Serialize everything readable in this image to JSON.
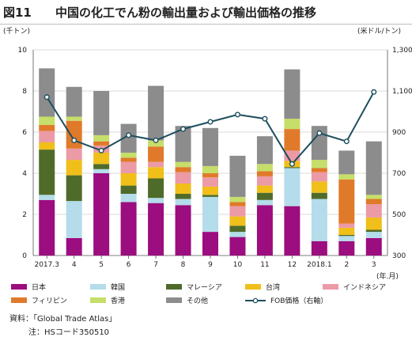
{
  "header": {
    "fig_num": "図11",
    "title": "中国の化工でん粉の輸出量および輸出価格の推移"
  },
  "units": {
    "left": "(千トン)",
    "right": "(米ドル/トン)",
    "x": "(年.月)"
  },
  "notes": {
    "source": "資料：「Global Trade Atlas」",
    "note": "注：HSコード350510"
  },
  "chart_data": {
    "type": "bar",
    "stacked": true,
    "categories": [
      "2017.3",
      "4",
      "5",
      "6",
      "7",
      "8",
      "9",
      "10",
      "11",
      "12",
      "2018.1",
      "2",
      "3"
    ],
    "ylim": [
      0,
      10
    ],
    "yticks": [
      0,
      2,
      4,
      6,
      8,
      10
    ],
    "y2lim": [
      300,
      1300
    ],
    "y2ticks": [
      "300",
      "500",
      "700",
      "900",
      "1,100",
      "1,300"
    ],
    "grid": true,
    "legend_position": "bottom",
    "series": [
      {
        "name": "日本",
        "color": "#9c0d7f",
        "values": [
          2.7,
          0.85,
          4.0,
          2.6,
          2.55,
          2.45,
          1.15,
          0.9,
          2.45,
          2.4,
          0.7,
          0.7,
          0.85
        ]
      },
      {
        "name": "韓国",
        "color": "#b4dcea",
        "values": [
          0.25,
          1.8,
          0.2,
          0.4,
          0.25,
          0.3,
          1.7,
          0.25,
          0.25,
          1.85,
          2.05,
          0.25,
          0.3
        ]
      },
      {
        "name": "マレーシア",
        "color": "#4f6b2a",
        "values": [
          2.2,
          1.25,
          0.25,
          0.4,
          0.95,
          0.25,
          0.1,
          0.3,
          0.35,
          0.05,
          0.3,
          0.05,
          0.1
        ]
      },
      {
        "name": "台湾",
        "color": "#f0bf1a",
        "values": [
          0.35,
          0.75,
          0.55,
          0.6,
          0.55,
          0.5,
          0.4,
          0.45,
          0.35,
          0.3,
          0.55,
          0.35,
          0.6
        ]
      },
      {
        "name": "インドネシア",
        "color": "#ec9aa6",
        "values": [
          0.55,
          0.55,
          0.35,
          0.55,
          0.25,
          0.55,
          0.45,
          0.5,
          0.45,
          0.5,
          0.45,
          0.2,
          0.65
        ]
      },
      {
        "name": "フィリピン",
        "color": "#e07a2a",
        "values": [
          0.3,
          1.35,
          0.2,
          0.2,
          0.75,
          0.25,
          0.2,
          0.2,
          0.25,
          1.05,
          0.2,
          2.15,
          0.25
        ]
      },
      {
        "name": "香港",
        "color": "#c6de6a",
        "values": [
          0.4,
          0.2,
          0.3,
          0.25,
          0.3,
          0.25,
          0.35,
          0.25,
          0.35,
          0.5,
          0.4,
          0.25,
          0.2
        ]
      },
      {
        "name": "その他",
        "color": "#8c8c8c",
        "values": [
          2.35,
          1.45,
          2.15,
          1.4,
          2.65,
          1.75,
          1.85,
          2.0,
          1.35,
          2.4,
          1.65,
          1.15,
          2.6
        ]
      }
    ],
    "line": {
      "name": "FOB価格（右軸）",
      "color": "#1d4f5e",
      "values": [
        1070,
        860,
        810,
        885,
        860,
        915,
        950,
        985,
        965,
        745,
        895,
        855,
        1095
      ]
    }
  }
}
